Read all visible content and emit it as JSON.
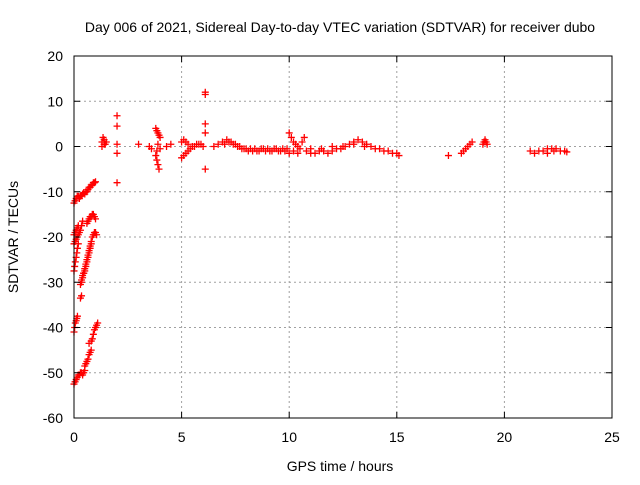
{
  "chart_data": {
    "type": "scatter",
    "title": "Day 006 of 2021, Sidereal Day-to-day VTEC variation (SDTVAR) for receiver dubo",
    "xlabel": "GPS time / hours",
    "ylabel": "SDTVAR / TECUs",
    "xlim": [
      0,
      25
    ],
    "ylim": [
      -60,
      20
    ],
    "x_ticks": [
      0,
      5,
      10,
      15,
      20,
      25
    ],
    "y_ticks": [
      -60,
      -50,
      -40,
      -30,
      -20,
      -10,
      0,
      10,
      20
    ],
    "x_tick_labels": [
      "0",
      "5",
      "10",
      "15",
      "20",
      "25"
    ],
    "y_tick_labels": [
      "-60",
      "-50",
      "-40",
      "-30",
      "-20",
      "-10",
      "0",
      "10",
      "20"
    ],
    "grid": true,
    "marker": "+",
    "marker_color": "#ff0000",
    "series": [
      {
        "name": "SDTVAR",
        "color": "#ff0000",
        "points": [
          [
            0.0,
            -12.5
          ],
          [
            0.05,
            -12.0
          ],
          [
            0.1,
            -11.5
          ],
          [
            0.15,
            -11.0
          ],
          [
            0.2,
            -11.0
          ],
          [
            0.25,
            -11.5
          ],
          [
            0.3,
            -11.0
          ],
          [
            0.35,
            -10.8
          ],
          [
            0.4,
            -10.5
          ],
          [
            0.45,
            -10.2
          ],
          [
            0.0,
            -19.5
          ],
          [
            0.05,
            -19.0
          ],
          [
            0.1,
            -18.5
          ],
          [
            0.15,
            -18.0
          ],
          [
            0.2,
            -17.5
          ],
          [
            0.0,
            -21.5
          ],
          [
            0.05,
            -21.0
          ],
          [
            0.1,
            -20.5
          ],
          [
            0.15,
            -20.0
          ],
          [
            0.2,
            -19.5
          ],
          [
            0.25,
            -19.0
          ],
          [
            0.3,
            -18.5
          ],
          [
            0.35,
            -17.5
          ],
          [
            0.4,
            -16.5
          ],
          [
            0.0,
            -27.5
          ],
          [
            0.03,
            -26.5
          ],
          [
            0.06,
            -25.5
          ],
          [
            0.1,
            -24.5
          ],
          [
            0.13,
            -23.5
          ],
          [
            0.16,
            -22.5
          ],
          [
            0.2,
            -21.5
          ],
          [
            0.0,
            -41.0
          ],
          [
            0.03,
            -40.0
          ],
          [
            0.06,
            -39.0
          ],
          [
            0.1,
            -38.5
          ],
          [
            0.13,
            -38.0
          ],
          [
            0.16,
            -37.5
          ],
          [
            0.0,
            -52.5
          ],
          [
            0.05,
            -52.0
          ],
          [
            0.1,
            -51.5
          ],
          [
            0.15,
            -51.0
          ],
          [
            0.2,
            -50.5
          ],
          [
            0.25,
            -50.5
          ],
          [
            0.3,
            -50.0
          ],
          [
            0.35,
            -50.0
          ],
          [
            0.4,
            -50.5
          ],
          [
            0.45,
            -50.0
          ],
          [
            0.5,
            -49.5
          ],
          [
            0.3,
            -33.5
          ],
          [
            0.35,
            -33.0
          ],
          [
            0.35,
            -30.0
          ],
          [
            0.4,
            -29.0
          ],
          [
            0.45,
            -28.0
          ],
          [
            0.5,
            -27.0
          ],
          [
            0.55,
            -26.0
          ],
          [
            0.6,
            -25.0
          ],
          [
            0.65,
            -24.0
          ],
          [
            0.7,
            -23.0
          ],
          [
            0.75,
            -22.0
          ],
          [
            0.8,
            -21.0
          ],
          [
            0.85,
            -20.0
          ],
          [
            0.9,
            -19.5
          ],
          [
            0.95,
            -19.0
          ],
          [
            1.0,
            -19.0
          ],
          [
            1.05,
            -19.5
          ],
          [
            0.3,
            -30.5
          ],
          [
            0.35,
            -29.5
          ],
          [
            0.4,
            -28.5
          ],
          [
            0.45,
            -28.0
          ],
          [
            0.5,
            -27.5
          ],
          [
            0.55,
            -26.5
          ],
          [
            0.6,
            -25.5
          ],
          [
            0.65,
            -24.5
          ],
          [
            0.7,
            -23.5
          ],
          [
            0.75,
            -22.5
          ],
          [
            0.8,
            -21.5
          ],
          [
            0.6,
            -17.0
          ],
          [
            0.65,
            -16.5
          ],
          [
            0.7,
            -16.0
          ],
          [
            0.75,
            -15.5
          ],
          [
            0.8,
            -15.5
          ],
          [
            0.85,
            -15.0
          ],
          [
            0.9,
            -15.0
          ],
          [
            0.95,
            -15.5
          ],
          [
            1.0,
            -16.0
          ],
          [
            0.5,
            -10.5
          ],
          [
            0.55,
            -10.0
          ],
          [
            0.6,
            -10.0
          ],
          [
            0.65,
            -9.5
          ],
          [
            0.7,
            -9.0
          ],
          [
            0.75,
            -9.0
          ],
          [
            0.8,
            -8.5
          ],
          [
            0.85,
            -8.5
          ],
          [
            0.9,
            -8.0
          ],
          [
            0.95,
            -8.0
          ],
          [
            1.0,
            -7.8
          ],
          [
            0.5,
            -48.5
          ],
          [
            0.55,
            -48.0
          ],
          [
            0.6,
            -47.5
          ],
          [
            0.65,
            -47.0
          ],
          [
            0.7,
            -46.0
          ],
          [
            0.75,
            -45.5
          ],
          [
            0.8,
            -45.0
          ],
          [
            0.7,
            -43.5
          ],
          [
            0.8,
            -43.0
          ],
          [
            0.85,
            -42.5
          ],
          [
            0.9,
            -41.5
          ],
          [
            0.95,
            -40.5
          ],
          [
            1.0,
            -40.0
          ],
          [
            1.05,
            -39.5
          ],
          [
            1.1,
            -39.0
          ],
          [
            1.3,
            1.0
          ],
          [
            1.35,
            2.0
          ],
          [
            1.4,
            1.5
          ],
          [
            1.45,
            0.5
          ],
          [
            1.5,
            1.0
          ],
          [
            1.3,
            0.0
          ],
          [
            1.4,
            0.5
          ],
          [
            2.0,
            6.8
          ],
          [
            2.0,
            4.5
          ],
          [
            2.0,
            0.5
          ],
          [
            2.0,
            -1.5
          ],
          [
            2.0,
            -8.0
          ],
          [
            3.0,
            0.5
          ],
          [
            3.5,
            0.0
          ],
          [
            3.6,
            -0.5
          ],
          [
            3.8,
            4.0
          ],
          [
            3.85,
            3.5
          ],
          [
            3.9,
            3.0
          ],
          [
            3.95,
            2.5
          ],
          [
            4.0,
            2.0
          ],
          [
            3.8,
            -2.0
          ],
          [
            3.85,
            -3.0
          ],
          [
            3.9,
            -4.0
          ],
          [
            3.95,
            -5.0
          ],
          [
            3.85,
            -1.0
          ],
          [
            3.9,
            0.5
          ],
          [
            4.0,
            -0.5
          ],
          [
            4.3,
            0.0
          ],
          [
            4.5,
            0.5
          ],
          [
            5.0,
            -2.5
          ],
          [
            5.1,
            -2.0
          ],
          [
            5.2,
            -1.5
          ],
          [
            5.3,
            -1.0
          ],
          [
            5.4,
            -0.5
          ],
          [
            5.5,
            0.0
          ],
          [
            5.6,
            0.0
          ],
          [
            5.7,
            0.5
          ],
          [
            5.8,
            0.5
          ],
          [
            5.9,
            0.5
          ],
          [
            6.0,
            0.0
          ],
          [
            5.0,
            1.0
          ],
          [
            5.1,
            1.5
          ],
          [
            5.2,
            1.0
          ],
          [
            5.3,
            0.5
          ],
          [
            6.1,
            12.0
          ],
          [
            6.1,
            11.5
          ],
          [
            6.1,
            5.0
          ],
          [
            6.1,
            3.0
          ],
          [
            6.1,
            -5.0
          ],
          [
            6.5,
            0.0
          ],
          [
            6.7,
            0.5
          ],
          [
            6.9,
            1.0
          ],
          [
            7.1,
            1.5
          ],
          [
            7.3,
            1.0
          ],
          [
            7.5,
            0.5
          ],
          [
            7.7,
            0.0
          ],
          [
            7.9,
            -0.5
          ],
          [
            8.1,
            -1.0
          ],
          [
            8.3,
            -1.0
          ],
          [
            8.5,
            -1.0
          ],
          [
            8.7,
            -0.5
          ],
          [
            8.9,
            -1.0
          ],
          [
            9.1,
            -1.0
          ],
          [
            9.3,
            -0.5
          ],
          [
            9.5,
            -1.0
          ],
          [
            9.7,
            -0.5
          ],
          [
            9.9,
            -0.5
          ],
          [
            7.0,
            0.5
          ],
          [
            7.2,
            1.0
          ],
          [
            7.4,
            0.5
          ],
          [
            7.6,
            0.0
          ],
          [
            7.8,
            -0.5
          ],
          [
            8.0,
            -0.5
          ],
          [
            8.2,
            -0.5
          ],
          [
            8.4,
            -0.5
          ],
          [
            8.6,
            -1.0
          ],
          [
            8.8,
            -0.5
          ],
          [
            9.0,
            -0.5
          ],
          [
            9.2,
            -1.0
          ],
          [
            9.4,
            -0.5
          ],
          [
            9.6,
            -1.0
          ],
          [
            9.8,
            -1.0
          ],
          [
            10.0,
            3.0
          ],
          [
            10.1,
            2.0
          ],
          [
            10.2,
            1.0
          ],
          [
            10.3,
            0.5
          ],
          [
            10.4,
            0.0
          ],
          [
            10.5,
            -0.5
          ],
          [
            10.0,
            -1.5
          ],
          [
            10.2,
            -1.0
          ],
          [
            10.4,
            -1.5
          ],
          [
            10.6,
            1.0
          ],
          [
            10.7,
            2.0
          ],
          [
            10.8,
            -1.0
          ],
          [
            11.0,
            -1.5
          ],
          [
            11.2,
            -1.5
          ],
          [
            11.4,
            -1.0
          ],
          [
            11.6,
            -1.0
          ],
          [
            11.8,
            -1.5
          ],
          [
            12.0,
            -1.0
          ],
          [
            12.2,
            -0.5
          ],
          [
            12.4,
            -0.5
          ],
          [
            12.6,
            0.0
          ],
          [
            12.8,
            0.5
          ],
          [
            13.0,
            1.0
          ],
          [
            13.2,
            1.5
          ],
          [
            13.4,
            1.0
          ],
          [
            13.6,
            0.5
          ],
          [
            13.8,
            0.0
          ],
          [
            11.0,
            -0.5
          ],
          [
            11.5,
            -0.5
          ],
          [
            12.0,
            0.0
          ],
          [
            12.5,
            0.0
          ],
          [
            13.0,
            0.5
          ],
          [
            13.5,
            0.0
          ],
          [
            14.0,
            -0.5
          ],
          [
            14.2,
            -0.5
          ],
          [
            14.4,
            -1.0
          ],
          [
            14.6,
            -1.0
          ],
          [
            14.8,
            -1.5
          ],
          [
            15.0,
            -1.5
          ],
          [
            15.1,
            -2.0
          ],
          [
            17.4,
            -2.0
          ],
          [
            18.0,
            -1.5
          ],
          [
            18.1,
            -1.0
          ],
          [
            18.2,
            -0.5
          ],
          [
            18.3,
            0.0
          ],
          [
            18.4,
            0.5
          ],
          [
            18.5,
            1.0
          ],
          [
            19.0,
            0.5
          ],
          [
            19.05,
            1.0
          ],
          [
            19.1,
            1.5
          ],
          [
            19.15,
            1.0
          ],
          [
            19.2,
            0.5
          ],
          [
            21.2,
            -1.0
          ],
          [
            21.4,
            -1.5
          ],
          [
            21.6,
            -1.0
          ],
          [
            21.8,
            -1.0
          ],
          [
            22.0,
            -0.5
          ],
          [
            22.2,
            -0.5
          ],
          [
            22.4,
            -0.5
          ],
          [
            22.6,
            -1.0
          ],
          [
            22.8,
            -1.0
          ],
          [
            22.0,
            -1.5
          ],
          [
            22.3,
            -1.0
          ],
          [
            22.9,
            -1.2
          ]
        ]
      }
    ]
  }
}
